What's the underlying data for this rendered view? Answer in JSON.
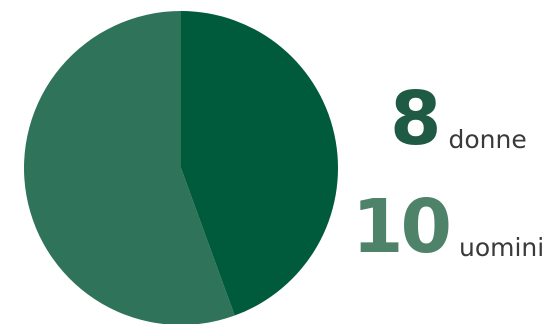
{
  "chart_data": {
    "type": "pie",
    "title": "",
    "categories": [
      "donne",
      "uomini"
    ],
    "values": [
      8,
      10
    ],
    "colors": [
      "#005a3c",
      "#2e735a"
    ]
  },
  "stats": {
    "women": {
      "number": "8",
      "label": "donne",
      "color": "#1f5a44"
    },
    "men": {
      "number": "10",
      "label": "uomini",
      "color": "#4e8269"
    }
  }
}
